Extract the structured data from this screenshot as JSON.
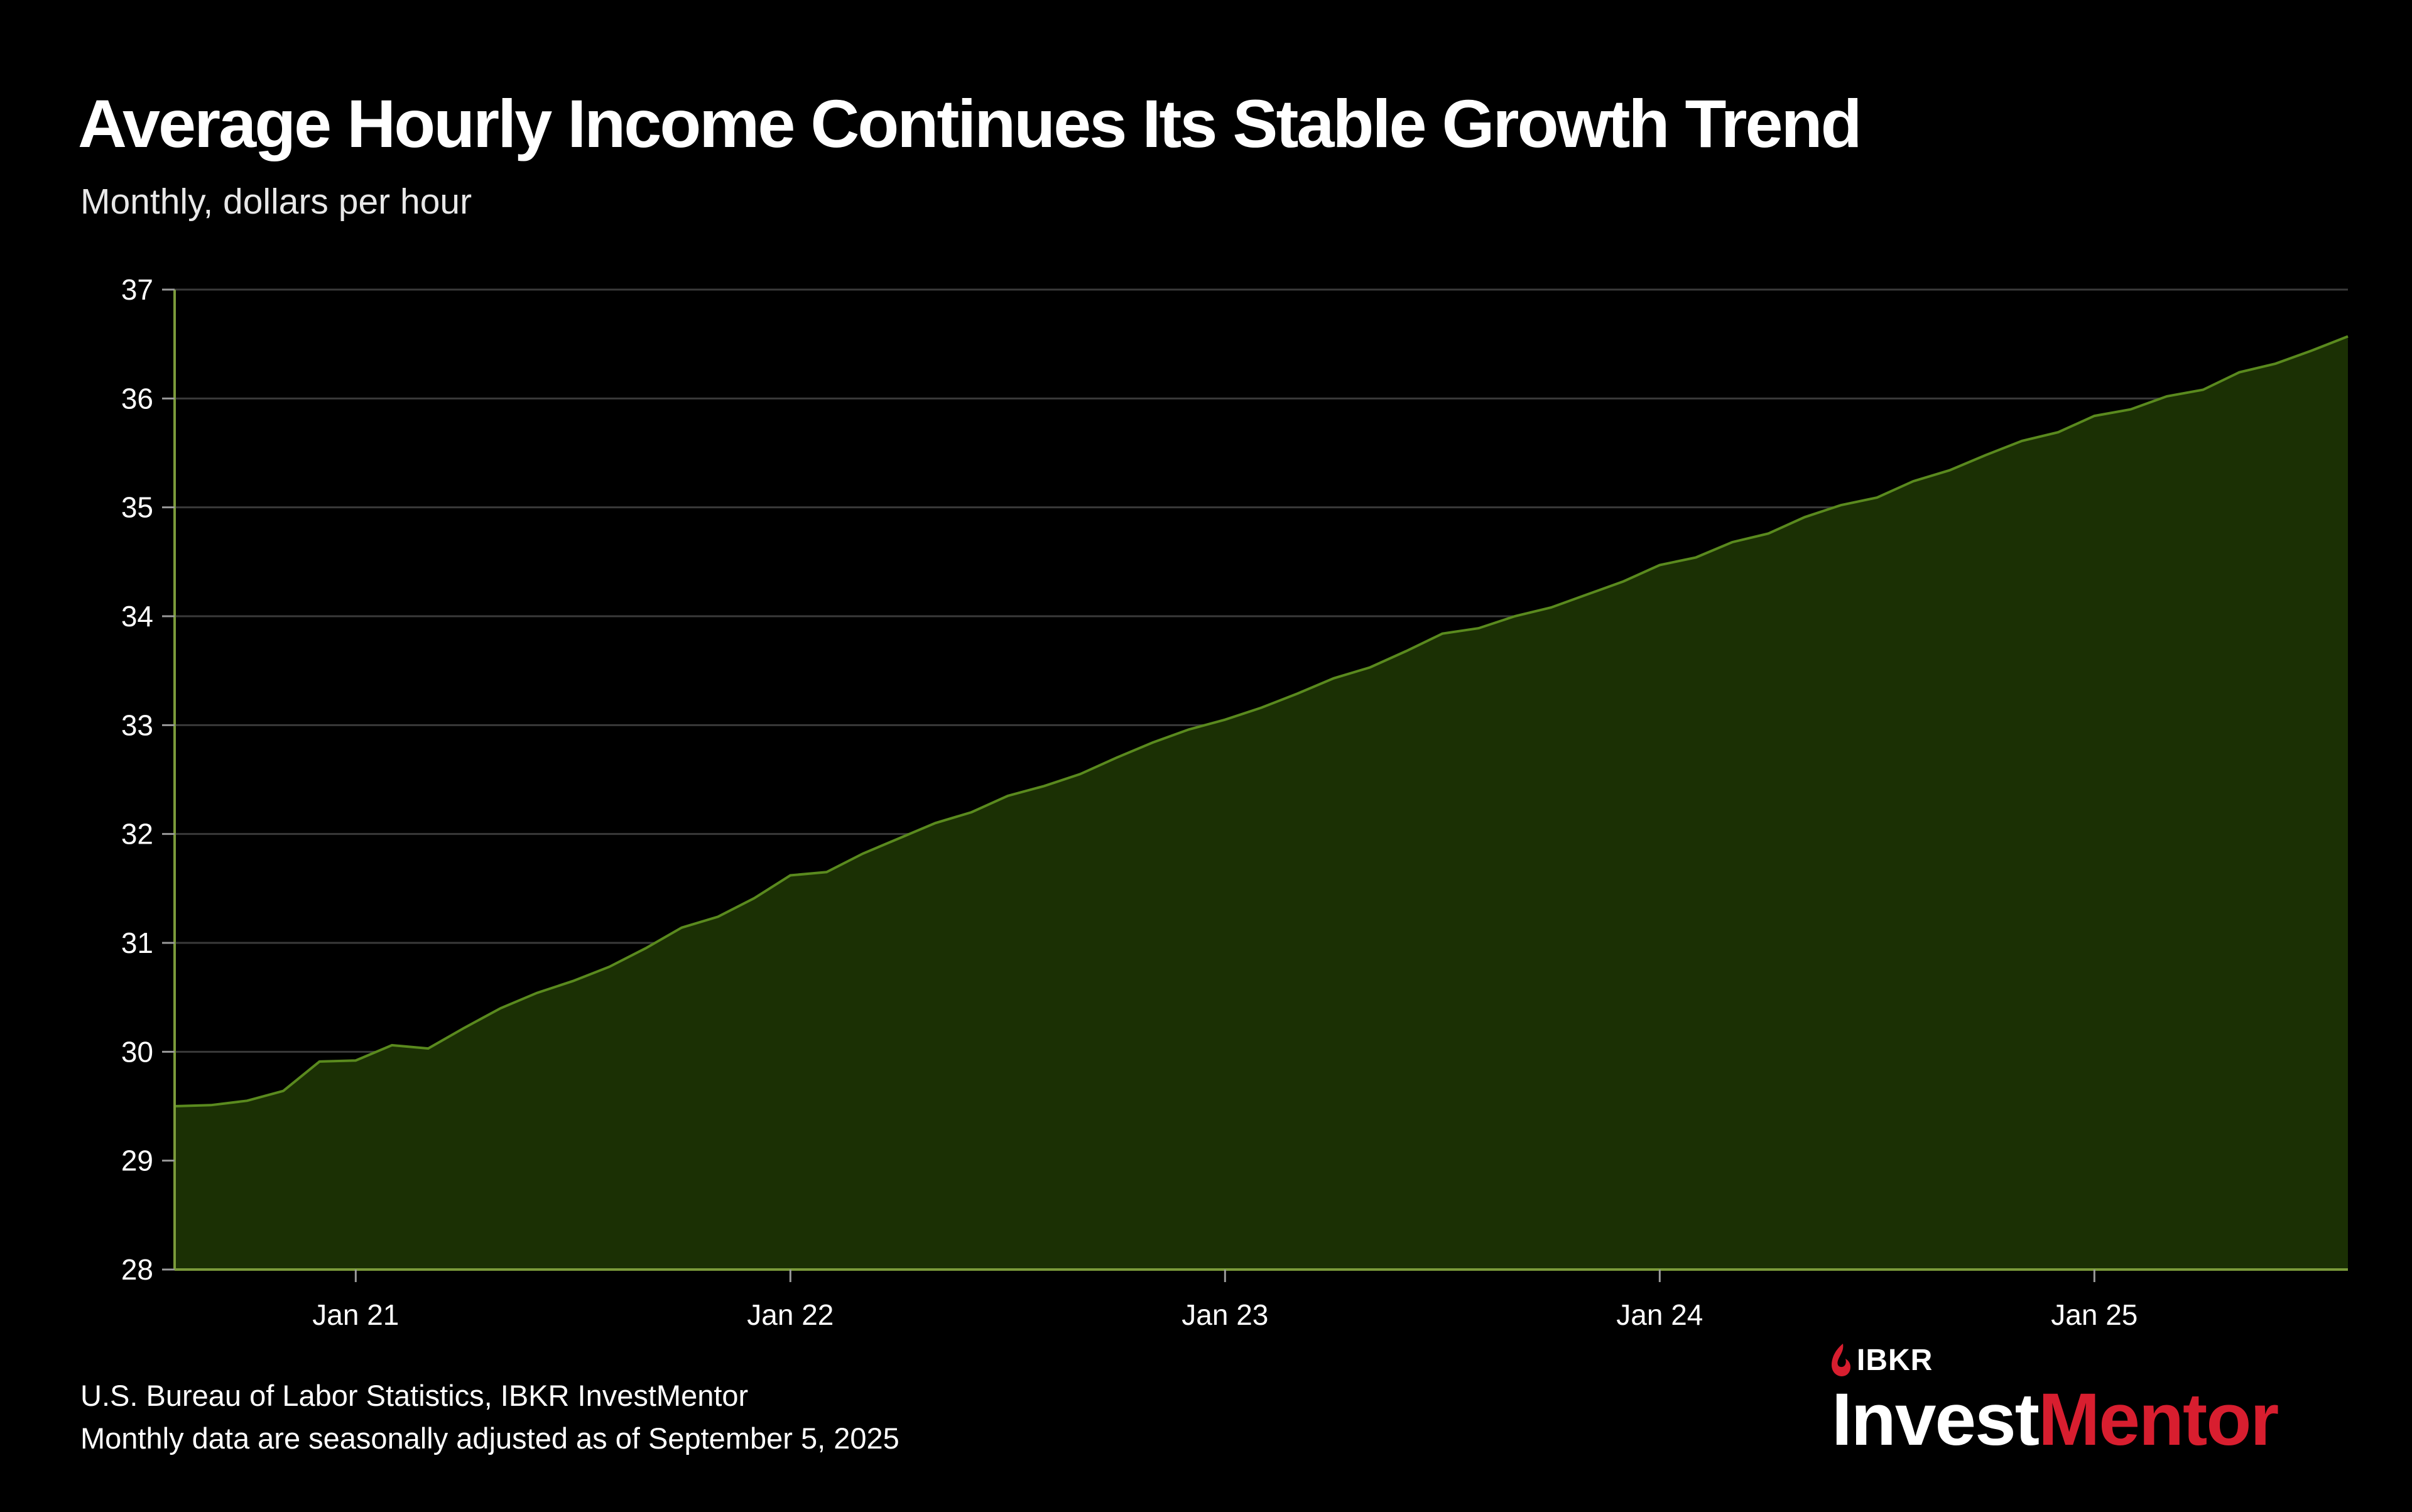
{
  "title": "Average Hourly Income Continues Its Stable Growth Trend",
  "subtitle": "Monthly, dollars per hour",
  "footer": {
    "source": "U.S. Bureau of Labor Statistics, IBKR InvestMentor",
    "note": "Monthly data are seasonally adjusted as of September 5, 2025"
  },
  "logo": {
    "ibkr": "IBKR",
    "invest": "Invest",
    "mentor": "Mentor",
    "brand_red": "#d81e2f"
  },
  "colors": {
    "area_fill": "#1b3004",
    "line": "#5a8a1e",
    "grid": "#3a3a3a",
    "axis": "#7a9a3a"
  },
  "chart_data": {
    "type": "area",
    "title": "Average Hourly Income Continues Its Stable Growth Trend",
    "ylabel": "Monthly, dollars per hour",
    "xlabel": "",
    "ylim": [
      28,
      37
    ],
    "yticks": [
      "28",
      "29",
      "30",
      "31",
      "32",
      "33",
      "34",
      "35",
      "36",
      "37"
    ],
    "xticks": [
      {
        "index": 5,
        "label": "Jan 21"
      },
      {
        "index": 17,
        "label": "Jan 22"
      },
      {
        "index": 29,
        "label": "Jan 23"
      },
      {
        "index": 41,
        "label": "Jan 24"
      },
      {
        "index": 53,
        "label": "Jan 25"
      }
    ],
    "grid": true,
    "start": "Aug 2020",
    "end": "Aug 2025",
    "series": [
      {
        "name": "Average hourly earnings",
        "values": [
          29.5,
          29.51,
          29.55,
          29.64,
          29.91,
          29.92,
          30.06,
          30.03,
          30.22,
          30.4,
          30.54,
          30.65,
          30.78,
          30.95,
          31.14,
          31.24,
          31.41,
          31.62,
          31.65,
          31.82,
          31.96,
          32.1,
          32.2,
          32.35,
          32.44,
          32.55,
          32.7,
          32.84,
          32.96,
          33.05,
          33.16,
          33.29,
          33.43,
          33.53,
          33.68,
          33.84,
          33.89,
          34.0,
          34.08,
          34.2,
          34.32,
          34.47,
          34.54,
          34.68,
          34.76,
          34.91,
          35.02,
          35.09,
          35.24,
          35.34,
          35.48,
          35.61,
          35.69,
          35.84,
          35.9,
          36.02,
          36.08,
          36.24,
          36.32,
          36.44,
          36.57
        ]
      }
    ]
  }
}
